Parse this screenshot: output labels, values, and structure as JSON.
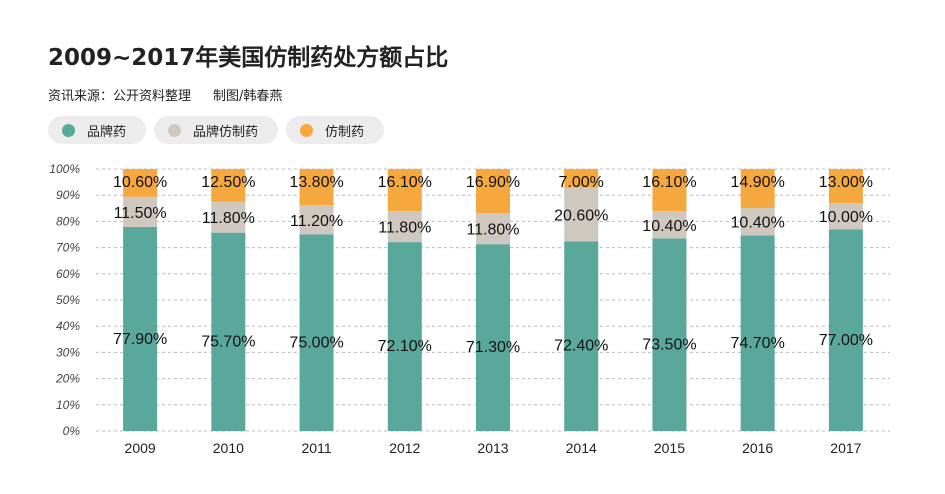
{
  "header": {
    "title": "2009~2017年美国仿制药处方额占比",
    "source": "资讯来源：公开资料整理",
    "author": "制图/韩春燕"
  },
  "chart_data": {
    "type": "bar",
    "stacked": true,
    "title": "2009~2017年美国仿制药处方额占比",
    "xlabel": "",
    "ylabel": "",
    "ylim": [
      0,
      100
    ],
    "yticks": [
      "0%",
      "10%",
      "20%",
      "30%",
      "40%",
      "50%",
      "60%",
      "70%",
      "80%",
      "90%",
      "100%"
    ],
    "grid": true,
    "legend_position": "top-left",
    "categories": [
      "2009",
      "2010",
      "2011",
      "2012",
      "2013",
      "2014",
      "2015",
      "2016",
      "2017"
    ],
    "series": [
      {
        "name": "品牌药",
        "color": "#5aa89c",
        "values": [
          77.9,
          75.7,
          75.0,
          72.1,
          71.3,
          72.4,
          73.5,
          74.7,
          77.0
        ],
        "labels": [
          "77.90%",
          "75.70%",
          "75.00%",
          "72.10%",
          "71.30%",
          "72.40%",
          "73.50%",
          "74.70%",
          "77.00%"
        ]
      },
      {
        "name": "品牌仿制药",
        "color": "#cfc8c0",
        "values": [
          11.5,
          11.8,
          11.2,
          11.8,
          11.8,
          20.6,
          10.4,
          10.4,
          10.0
        ],
        "labels": [
          "11.50%",
          "11.80%",
          "11.20%",
          "11.80%",
          "11.80%",
          "20.60%",
          "10.40%",
          "10.40%",
          "10.00%"
        ]
      },
      {
        "name": "仿制药",
        "color": "#f5a83e",
        "values": [
          10.6,
          12.5,
          13.8,
          16.1,
          16.9,
          7.0,
          16.1,
          14.9,
          13.0
        ],
        "labels": [
          "10.60%",
          "12.50%",
          "13.80%",
          "16.10%",
          "16.90%",
          "7.00%",
          "16.10%",
          "14.90%",
          "13.00%"
        ]
      }
    ]
  }
}
